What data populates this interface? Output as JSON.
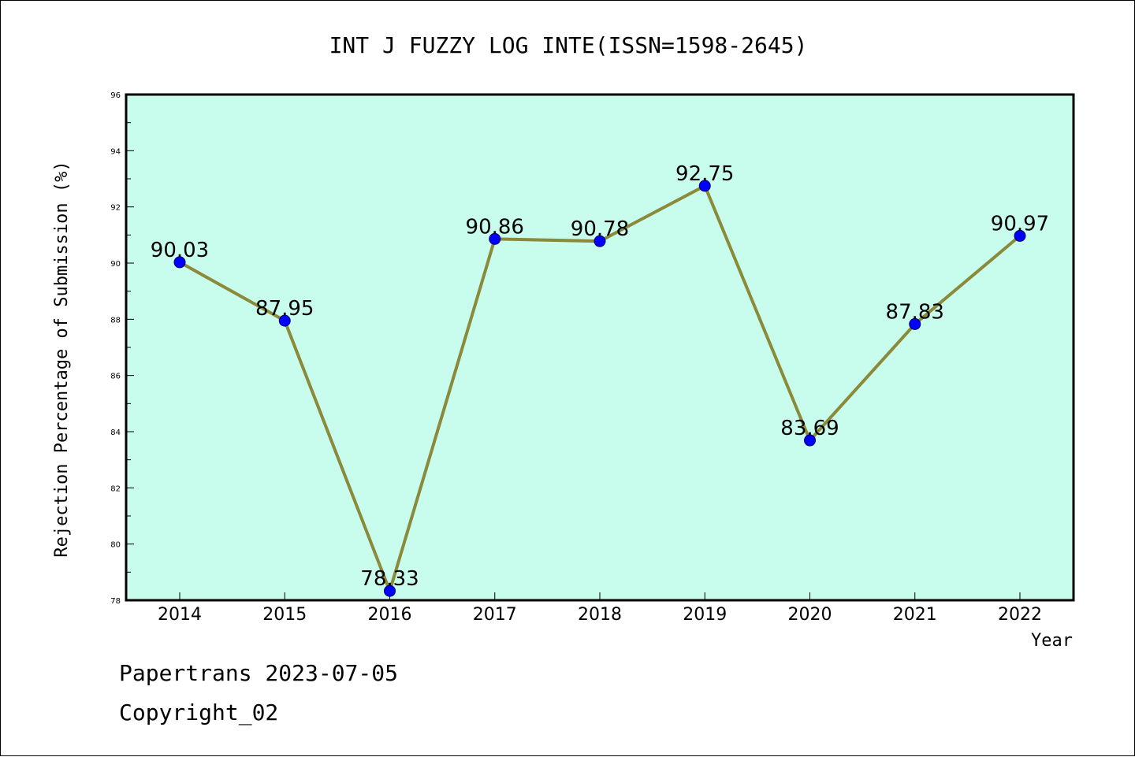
{
  "chart_data": {
    "type": "line",
    "title": "INT J FUZZY LOG INTE(ISSN=1598-2645)",
    "xlabel": "Year",
    "ylabel": "Rejection Percentage of Submission (%)",
    "categories": [
      "2014",
      "2015",
      "2016",
      "2017",
      "2018",
      "2019",
      "2020",
      "2021",
      "2022"
    ],
    "values": [
      90.03,
      87.95,
      78.33,
      90.86,
      90.78,
      92.75,
      83.69,
      87.83,
      90.97
    ],
    "data_labels": [
      "90.03",
      "87.95",
      "78.33",
      "90.86",
      "90.78",
      "92.75",
      "83.69",
      "87.83",
      "90.97"
    ],
    "ylim": [
      78,
      96
    ],
    "yticks": [
      "78",
      "80",
      "82",
      "84",
      "86",
      "88",
      "90",
      "92",
      "94",
      "96"
    ],
    "grid": false,
    "legend": "none",
    "colors": {
      "plot_background": "#c8fcec",
      "line": "#8b8a3a",
      "marker": "#0000ff"
    }
  },
  "footer": {
    "line1": "Papertrans 2023-07-05",
    "line2": "Copyright_02"
  }
}
